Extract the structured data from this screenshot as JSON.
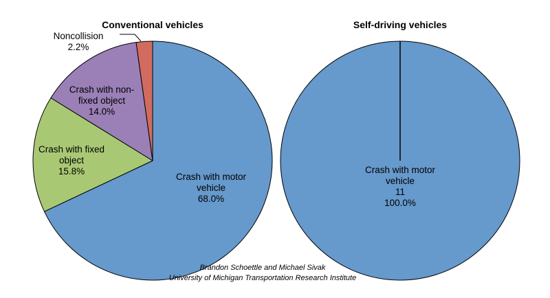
{
  "chart_data": [
    {
      "type": "pie",
      "title": "Conventional vehicles",
      "slices": [
        {
          "label": "Crash with motor vehicle",
          "display": [
            "Crash with motor",
            "vehicle",
            "68.0%"
          ],
          "value": 68.0,
          "color": "#6699cc"
        },
        {
          "label": "Crash with fixed object",
          "display": [
            "Crash with fixed",
            "object",
            "15.8%"
          ],
          "value": 15.8,
          "color": "#a9c874"
        },
        {
          "label": "Crash with non-fixed object",
          "display": [
            "Crash with non-",
            "fixed object",
            "14.0%"
          ],
          "value": 14.0,
          "color": "#9a80b6"
        },
        {
          "label": "Noncollision",
          "display": [
            "Noncollision",
            "2.2%"
          ],
          "value": 2.2,
          "color": "#d16b5f"
        }
      ]
    },
    {
      "type": "pie",
      "title": "Self-driving vehicles",
      "slices": [
        {
          "label": "Crash with motor vehicle",
          "display": [
            "Crash with motor",
            "vehicle",
            "11",
            "100.0%"
          ],
          "value": 100.0,
          "count": 11,
          "color": "#6699cc"
        }
      ]
    }
  ],
  "credit": {
    "line1": "Brandon Schoettle and Michael Sivak",
    "line2": "University of Michigan Transportation Research Institute"
  }
}
